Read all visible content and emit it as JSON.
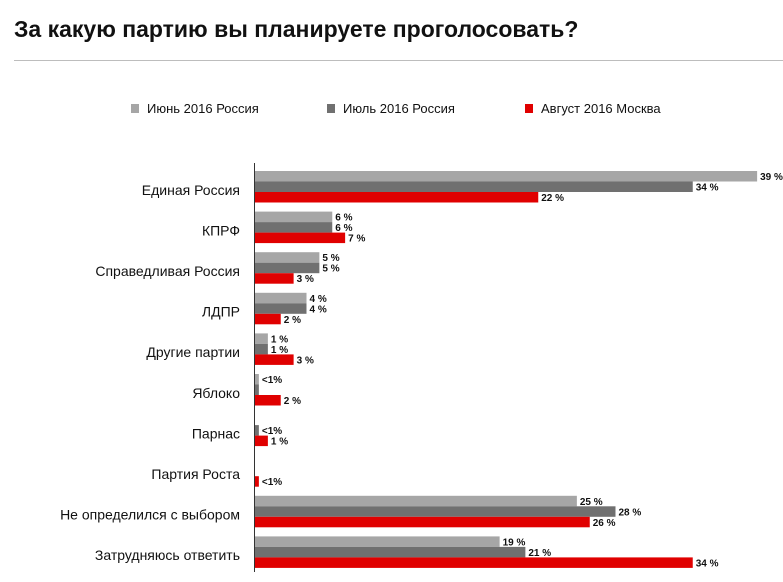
{
  "title": "За какую партию вы планируете проголосовать?",
  "chart_data": {
    "type": "bar",
    "orientation": "horizontal",
    "categories": [
      "Единая Россия",
      "КПРФ",
      "Справедливая Россия",
      "ЛДПР",
      "Другие партии",
      "Яблоко",
      "Парнас",
      "Партия Роста",
      "Не определился с выбором",
      "Затрудняюсь ответить"
    ],
    "series": [
      {
        "name": "Июнь 2016 Россия",
        "color": "#a6a6a6",
        "values": [
          39,
          6,
          5,
          4,
          1,
          0.3,
          null,
          null,
          25,
          19
        ],
        "labels": [
          "39 %",
          "6 %",
          "5 %",
          "4 %",
          "1 %",
          "<1%",
          "",
          "",
          "25 %",
          "19 %"
        ]
      },
      {
        "name": "Июль 2016 Россия",
        "color": "#707070",
        "values": [
          34,
          6,
          5,
          4,
          1,
          0.3,
          0.3,
          null,
          28,
          21
        ],
        "labels": [
          "34 %",
          "6 %",
          "5 %",
          "4 %",
          "1 %",
          "",
          "<1%",
          "",
          "28 %",
          "21 %"
        ]
      },
      {
        "name": "Август 2016 Москва",
        "color": "#e00000",
        "values": [
          22,
          7,
          3,
          2,
          3,
          2,
          1,
          0.3,
          26,
          34
        ],
        "labels": [
          "22 %",
          "7 %",
          "3 %",
          "2 %",
          "3 %",
          "2 %",
          "1 %",
          "<1%",
          "26 %",
          "34 %"
        ]
      }
    ],
    "xlim": [
      0,
      40
    ],
    "legend_position": "top",
    "grid": false
  }
}
